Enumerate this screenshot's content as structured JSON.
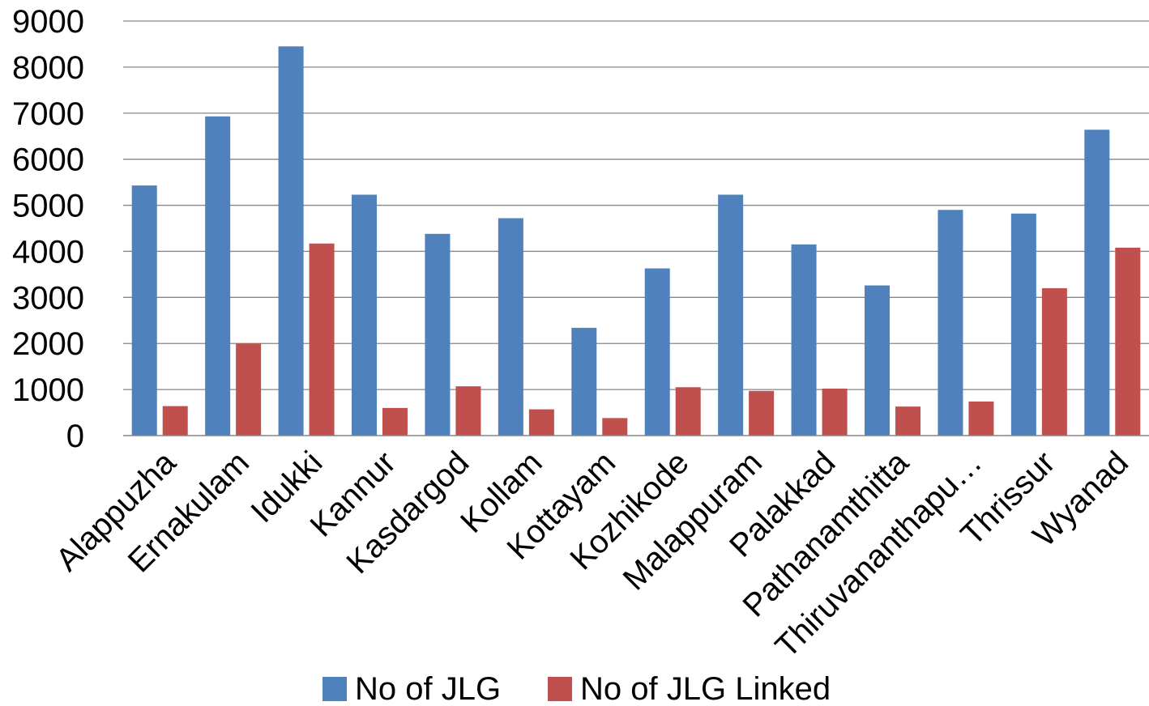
{
  "chart_data": {
    "type": "bar",
    "title": "",
    "xlabel": "",
    "ylabel": "",
    "ylim": [
      0,
      9000
    ],
    "yticks": [
      0,
      1000,
      2000,
      3000,
      4000,
      5000,
      6000,
      7000,
      8000,
      9000
    ],
    "grid": true,
    "legend_position": "bottom",
    "categories": [
      "Alappuzha",
      "Ernakulam",
      "Idukki",
      "Kannur",
      "Kasdargod",
      "Kollam",
      "Kottayam",
      "Kozhikode",
      "Malappuram",
      "Palakkad",
      "Pathanamthitta",
      "Thiruvananthapu…",
      "Thrissur",
      "Wyanad"
    ],
    "series": [
      {
        "name": "No of JLG",
        "color": "#4F81BD",
        "values": [
          5430,
          6930,
          8450,
          5230,
          4380,
          4720,
          2340,
          3630,
          5230,
          4150,
          3260,
          4900,
          4820,
          6640
        ]
      },
      {
        "name": "No of JLG Linked",
        "color": "#C0504D",
        "values": [
          640,
          2000,
          4170,
          600,
          1070,
          570,
          380,
          1050,
          970,
          1020,
          630,
          740,
          3200,
          4080
        ]
      }
    ]
  }
}
